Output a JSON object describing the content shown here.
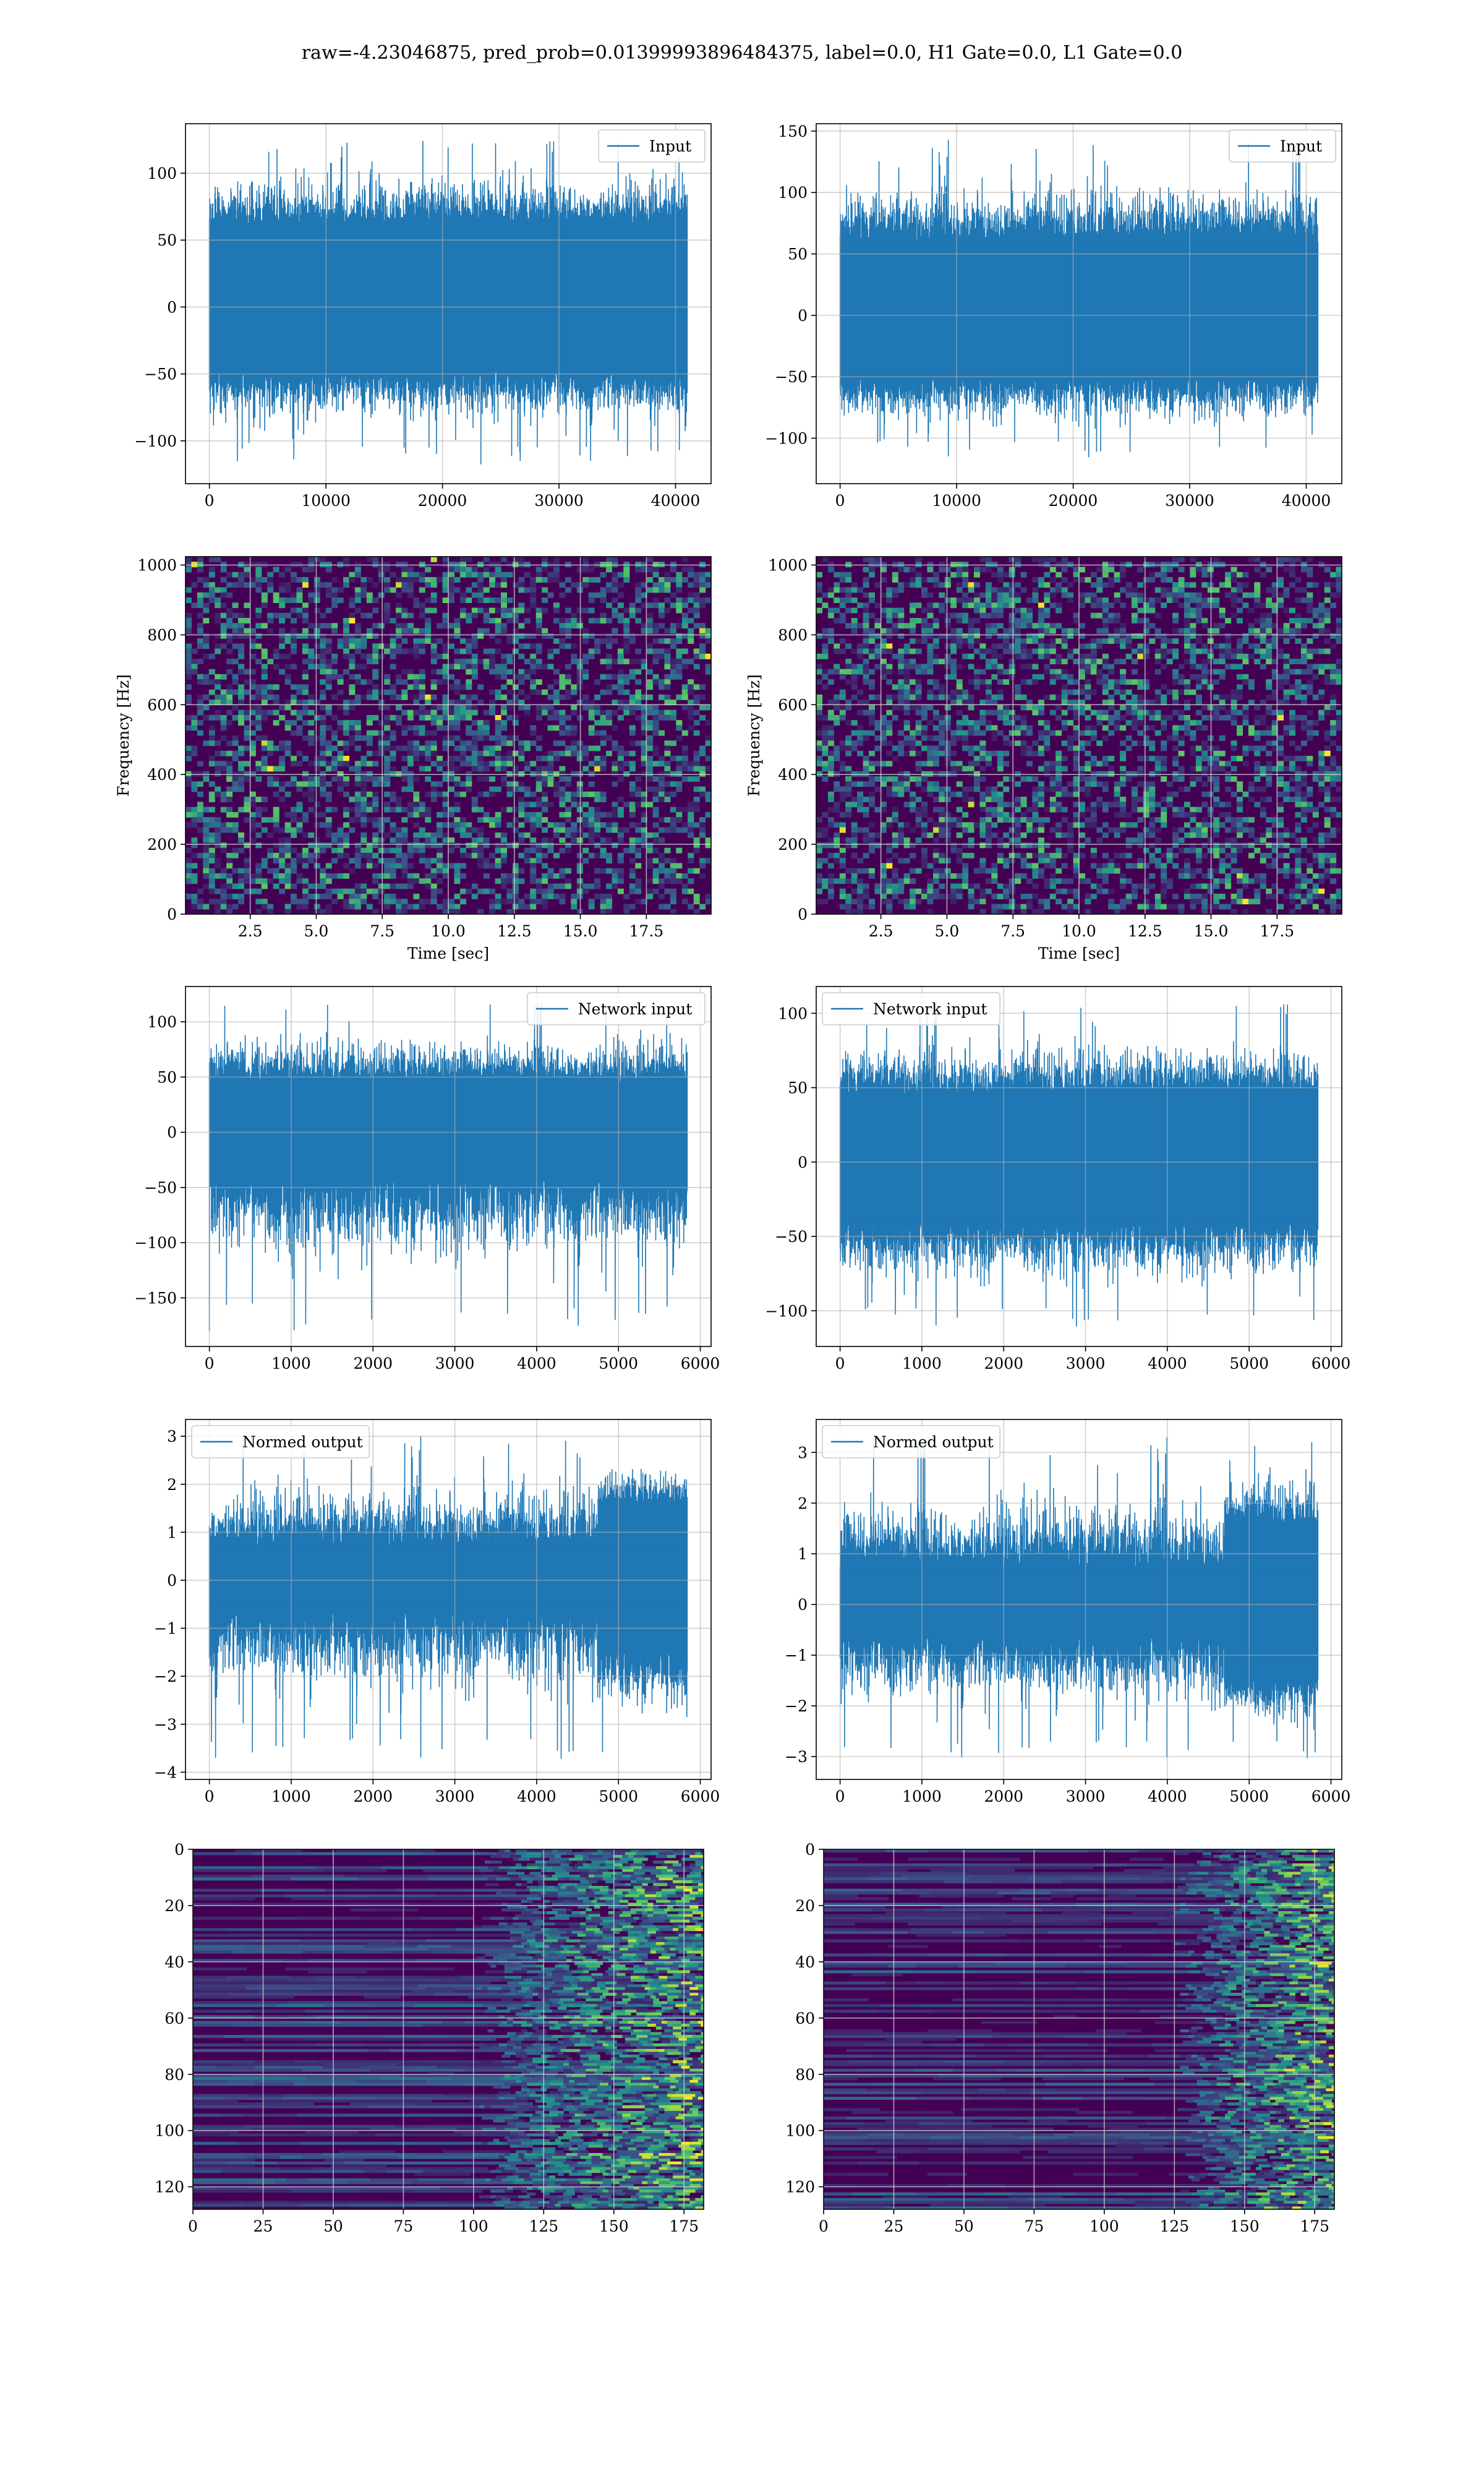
{
  "figure": {
    "title": "raw=-4.23046875, pred_prob=0.01399993896484375, label=0.0, H1 Gate=0.0, L1 Gate=0.0"
  },
  "colors": {
    "line": "#1f77b4",
    "grid": "#b0b0b0",
    "viridis_dark": "#440154",
    "viridis_mid": "#2a788e",
    "viridis_bright": "#fde725"
  },
  "chart_data": [
    {
      "id": "input-h1",
      "type": "line",
      "series": [
        {
          "name": "Input",
          "envelope": {
            "x": [
              0,
              41000
            ],
            "y_min": -118,
            "y_max": 125,
            "core": [
              -48,
              62
            ]
          }
        }
      ],
      "xticks": [
        "0",
        "10000",
        "20000",
        "30000",
        "40000"
      ],
      "xtick_values": [
        0,
        10000,
        20000,
        30000,
        40000
      ],
      "yticks": [
        "−100",
        "−50",
        "0",
        "50",
        "100"
      ],
      "ytick_values": [
        -100,
        -50,
        0,
        50,
        100
      ],
      "xlim": [
        -2050,
        43050
      ],
      "ylim": [
        -132,
        137
      ],
      "legend": "upper-right",
      "grid": true,
      "xlabel": "",
      "ylabel": ""
    },
    {
      "id": "input-l1",
      "type": "line",
      "series": [
        {
          "name": "Input",
          "envelope": {
            "x": [
              0,
              41000
            ],
            "y_min": -118,
            "y_max": 143,
            "core": [
              -50,
              60
            ]
          }
        }
      ],
      "xticks": [
        "0",
        "10000",
        "20000",
        "30000",
        "40000"
      ],
      "xtick_values": [
        0,
        10000,
        20000,
        30000,
        40000
      ],
      "yticks": [
        "−100",
        "−50",
        "0",
        "50",
        "100",
        "150"
      ],
      "ytick_values": [
        -100,
        -50,
        0,
        50,
        100,
        150
      ],
      "xlim": [
        -2050,
        43050
      ],
      "ylim": [
        -137,
        156
      ],
      "legend": "upper-right",
      "grid": true,
      "xlabel": "",
      "ylabel": ""
    },
    {
      "id": "spec-h1",
      "type": "heatmap",
      "xticks": [
        "2.5",
        "5.0",
        "7.5",
        "10.0",
        "12.5",
        "15.0",
        "17.5"
      ],
      "xtick_values": [
        2.5,
        5,
        7.5,
        10,
        12.5,
        15,
        17.5
      ],
      "yticks": [
        "0",
        "200",
        "400",
        "600",
        "800",
        "1000"
      ],
      "ytick_values": [
        0,
        200,
        400,
        600,
        800,
        1000
      ],
      "xlim": [
        0.05,
        19.95
      ],
      "ylim": [
        0,
        1024
      ],
      "xlabel": "Time [sec]",
      "ylabel": "Frequency [Hz]",
      "grid": true,
      "colormap": "viridis"
    },
    {
      "id": "spec-l1",
      "type": "heatmap",
      "xticks": [
        "2.5",
        "5.0",
        "7.5",
        "10.0",
        "12.5",
        "15.0",
        "17.5"
      ],
      "xtick_values": [
        2.5,
        5,
        7.5,
        10,
        12.5,
        15,
        17.5
      ],
      "yticks": [
        "0",
        "200",
        "400",
        "600",
        "800",
        "1000"
      ],
      "ytick_values": [
        0,
        200,
        400,
        600,
        800,
        1000
      ],
      "xlim": [
        0.05,
        19.95
      ],
      "ylim": [
        0,
        1024
      ],
      "xlabel": "Time [sec]",
      "ylabel": "Frequency [Hz]",
      "grid": true,
      "colormap": "viridis"
    },
    {
      "id": "netin-h1",
      "type": "line",
      "series": [
        {
          "name": "Network input",
          "envelope": {
            "x": [
              0,
              5840
            ],
            "y_min": -180,
            "y_max": 118,
            "core": [
              -40,
              45
            ],
            "start_spike": -180
          }
        }
      ],
      "xticks": [
        "0",
        "1000",
        "2000",
        "3000",
        "4000",
        "5000",
        "6000"
      ],
      "xtick_values": [
        0,
        1000,
        2000,
        3000,
        4000,
        5000,
        6000
      ],
      "yticks": [
        "−150",
        "−100",
        "−50",
        "0",
        "50",
        "100"
      ],
      "ytick_values": [
        -150,
        -100,
        -50,
        0,
        50,
        100
      ],
      "xlim": [
        -292,
        6132
      ],
      "ylim": [
        -194,
        132
      ],
      "legend": "upper-right",
      "grid": true,
      "xlabel": "",
      "ylabel": ""
    },
    {
      "id": "netin-l1",
      "type": "line",
      "series": [
        {
          "name": "Network input",
          "envelope": {
            "x": [
              0,
              5840
            ],
            "y_min": -113,
            "y_max": 107,
            "core": [
              -40,
              45
            ]
          }
        }
      ],
      "xticks": [
        "0",
        "1000",
        "2000",
        "3000",
        "4000",
        "5000",
        "6000"
      ],
      "xtick_values": [
        0,
        1000,
        2000,
        3000,
        4000,
        5000,
        6000
      ],
      "yticks": [
        "−100",
        "−50",
        "0",
        "50",
        "100"
      ],
      "ytick_values": [
        -100,
        -50,
        0,
        50,
        100
      ],
      "xlim": [
        -292,
        6132
      ],
      "ylim": [
        -124,
        118
      ],
      "legend": "upper-left",
      "grid": true,
      "xlabel": "",
      "ylabel": ""
    },
    {
      "id": "normed-h1",
      "type": "line",
      "series": [
        {
          "name": "Normed output",
          "envelope": {
            "x": [
              0,
              5840
            ],
            "y_min": -3.8,
            "y_max": 3.0,
            "core": [
              -0.6,
              0.7
            ],
            "burst_start": 4750
          }
        }
      ],
      "xticks": [
        "0",
        "1000",
        "2000",
        "3000",
        "4000",
        "5000",
        "6000"
      ],
      "xtick_values": [
        0,
        1000,
        2000,
        3000,
        4000,
        5000,
        6000
      ],
      "yticks": [
        "−4",
        "−3",
        "−2",
        "−1",
        "0",
        "1",
        "2",
        "3"
      ],
      "ytick_values": [
        -4,
        -3,
        -2,
        -1,
        0,
        1,
        2,
        3
      ],
      "xlim": [
        -292,
        6132
      ],
      "ylim": [
        -4.15,
        3.35
      ],
      "legend": "upper-left",
      "grid": true,
      "xlabel": "",
      "ylabel": ""
    },
    {
      "id": "normed-l1",
      "type": "line",
      "series": [
        {
          "name": "Normed output",
          "envelope": {
            "x": [
              0,
              5840
            ],
            "y_min": -3.1,
            "y_max": 3.3,
            "core": [
              -0.6,
              0.7
            ],
            "burst_start": 4700
          }
        }
      ],
      "xticks": [
        "0",
        "1000",
        "2000",
        "3000",
        "4000",
        "5000",
        "6000"
      ],
      "xtick_values": [
        0,
        1000,
        2000,
        3000,
        4000,
        5000,
        6000
      ],
      "yticks": [
        "−3",
        "−2",
        "−1",
        "0",
        "1",
        "2",
        "3"
      ],
      "ytick_values": [
        -3,
        -2,
        -1,
        0,
        1,
        2,
        3
      ],
      "xlim": [
        -292,
        6132
      ],
      "ylim": [
        -3.45,
        3.65
      ],
      "legend": "upper-left",
      "grid": true,
      "xlabel": "",
      "ylabel": ""
    },
    {
      "id": "feat-h1",
      "type": "heatmap",
      "xticks": [
        "0",
        "25",
        "50",
        "75",
        "100",
        "125",
        "150",
        "175"
      ],
      "xtick_values": [
        0,
        25,
        50,
        75,
        100,
        125,
        150,
        175
      ],
      "yticks": [
        "0",
        "20",
        "40",
        "60",
        "80",
        "100",
        "120"
      ],
      "ytick_values": [
        0,
        20,
        40,
        60,
        80,
        100,
        120
      ],
      "xlim": [
        0,
        182
      ],
      "ylim": [
        128,
        0
      ],
      "xlabel": "",
      "ylabel": "",
      "grid": true,
      "colormap": "viridis",
      "active_from": 100
    },
    {
      "id": "feat-l1",
      "type": "heatmap",
      "xticks": [
        "0",
        "25",
        "50",
        "75",
        "100",
        "125",
        "150",
        "175"
      ],
      "xtick_values": [
        0,
        25,
        50,
        75,
        100,
        125,
        150,
        175
      ],
      "yticks": [
        "0",
        "20",
        "40",
        "60",
        "80",
        "100",
        "120"
      ],
      "ytick_values": [
        0,
        20,
        40,
        60,
        80,
        100,
        120
      ],
      "xlim": [
        0,
        182
      ],
      "ylim": [
        128,
        0
      ],
      "xlabel": "",
      "ylabel": "",
      "grid": true,
      "colormap": "viridis",
      "active_from": 125
    }
  ]
}
